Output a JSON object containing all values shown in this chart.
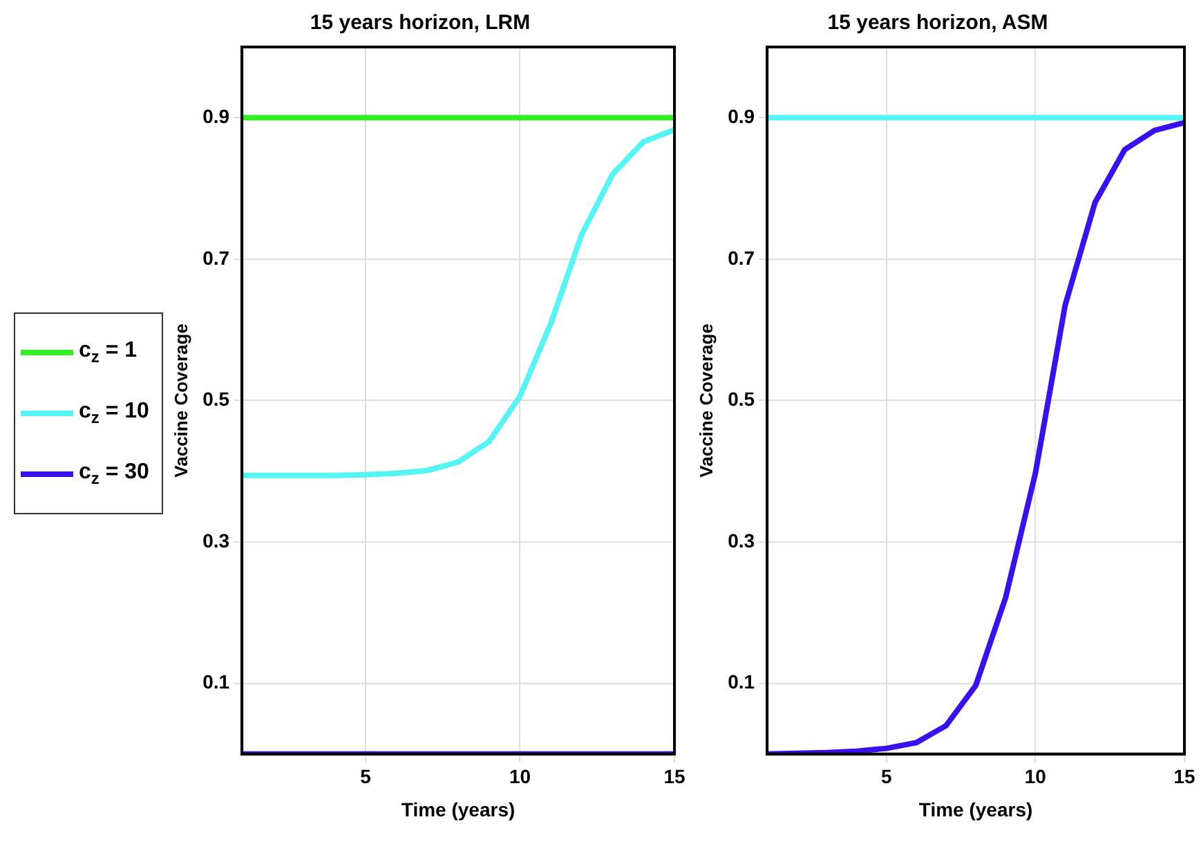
{
  "chart_data": [
    {
      "type": "line",
      "title": "15 years horizon, LRM",
      "xlabel": "Time (years)",
      "ylabel": "Vaccine Coverage",
      "xlim": [
        1,
        15
      ],
      "xticks": [
        5,
        10,
        15
      ],
      "ylim": [
        0,
        1
      ],
      "yticks": [
        0.1,
        0.3,
        0.5,
        0.7,
        0.9
      ],
      "grid": true,
      "legend": "left",
      "marker": "none",
      "line_style": "solid",
      "x": [
        1,
        2,
        3,
        4,
        5,
        6,
        7,
        8,
        9,
        10,
        11,
        12,
        13,
        14,
        15
      ],
      "series": [
        {
          "name": "c$_{z}$ = 1",
          "color": "#33ee22",
          "values": [
            0.9,
            0.9,
            0.9,
            0.9,
            0.9,
            0.9,
            0.9,
            0.9,
            0.9,
            0.9,
            0.9,
            0.9,
            0.9,
            0.9,
            0.9
          ]
        },
        {
          "name": "c$_{z}$ = 10",
          "color": "#55f5f5",
          "values": [
            0.394,
            0.394,
            0.394,
            0.394,
            0.395,
            0.397,
            0.401,
            0.413,
            0.442,
            0.506,
            0.609,
            0.735,
            0.82,
            0.866,
            0.883
          ]
        },
        {
          "name": "c$_{z}$ = 30",
          "color": "#3a11ee",
          "values": [
            0,
            0,
            0,
            0,
            0,
            0,
            0,
            0,
            0,
            0,
            0,
            0,
            0,
            0,
            0
          ]
        }
      ]
    },
    {
      "type": "line",
      "title": "15 years horizon, ASM",
      "xlabel": "Time (years)",
      "ylabel": "Vaccine Coverage",
      "xlim": [
        1,
        15
      ],
      "xticks": [
        5,
        10,
        15
      ],
      "ylim": [
        0,
        1
      ],
      "yticks": [
        0.1,
        0.3,
        0.5,
        0.7,
        0.9
      ],
      "grid": true,
      "legend": false,
      "marker": "none",
      "line_style": "solid",
      "x": [
        1,
        2,
        3,
        4,
        5,
        6,
        7,
        8,
        9,
        10,
        11,
        12,
        13,
        14,
        15
      ],
      "series": [
        {
          "color": "#55f5f5",
          "values": [
            0.9,
            0.9,
            0.9,
            0.9,
            0.9,
            0.9,
            0.9,
            0.9,
            0.9,
            0.9,
            0.9,
            0.9,
            0.9,
            0.9,
            0.9
          ]
        },
        {
          "color": "#3a11ee",
          "values": [
            0,
            0.001,
            0.002,
            0.004,
            0.008,
            0.016,
            0.04,
            0.097,
            0.221,
            0.397,
            0.635,
            0.78,
            0.855,
            0.882,
            0.893
          ]
        }
      ]
    }
  ]
}
